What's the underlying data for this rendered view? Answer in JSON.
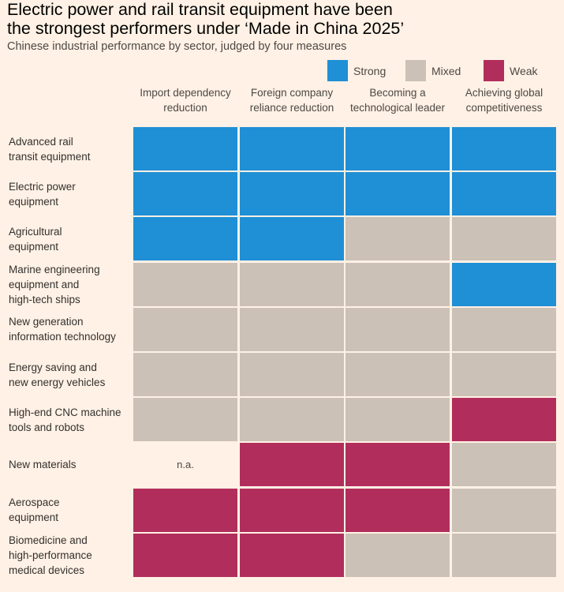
{
  "title_lines": [
    "Electric power and rail transit equipment have been",
    "the strongest performers under ‘Made in China 2025’"
  ],
  "subtitle": "Chinese industrial performance by sector, judged by four measures",
  "legend": [
    {
      "key": "strong",
      "label": "Strong",
      "color": "#1f8fd6"
    },
    {
      "key": "mixed",
      "label": "Mixed",
      "color": "#ccc1b7"
    },
    {
      "key": "weak",
      "label": "Weak",
      "color": "#b12e5c"
    }
  ],
  "chart_data": {
    "type": "table",
    "title": "Electric power and rail transit equipment have been the strongest performers under ‘Made in China 2025’",
    "subtitle": "Chinese industrial performance by sector, judged by four measures",
    "columns": [
      {
        "lines": [
          "Import dependency",
          "reduction"
        ]
      },
      {
        "lines": [
          "Foreign company",
          "reliance reduction"
        ]
      },
      {
        "lines": [
          "Becoming a",
          "technological leader"
        ]
      },
      {
        "lines": [
          "Achieving global",
          "competitiveness"
        ]
      }
    ],
    "rows": [
      {
        "lines": [
          "Advanced rail",
          "transit equipment"
        ],
        "ratings": [
          "strong",
          "strong",
          "strong",
          "strong"
        ]
      },
      {
        "lines": [
          "Electric power",
          "equipment"
        ],
        "ratings": [
          "strong",
          "strong",
          "strong",
          "strong"
        ]
      },
      {
        "lines": [
          "Agricultural",
          "equipment"
        ],
        "ratings": [
          "strong",
          "strong",
          "mixed",
          "mixed"
        ]
      },
      {
        "lines": [
          "Marine engineering",
          "equipment and",
          "high-tech ships"
        ],
        "ratings": [
          "mixed",
          "mixed",
          "mixed",
          "strong"
        ]
      },
      {
        "lines": [
          "New generation",
          "information technology"
        ],
        "ratings": [
          "mixed",
          "mixed",
          "mixed",
          "mixed"
        ]
      },
      {
        "lines": [
          "Energy saving and",
          "new energy vehicles"
        ],
        "ratings": [
          "mixed",
          "mixed",
          "mixed",
          "mixed"
        ]
      },
      {
        "lines": [
          "High-end CNC machine",
          "tools and robots"
        ],
        "ratings": [
          "mixed",
          "mixed",
          "mixed",
          "weak"
        ]
      },
      {
        "lines": [
          "New materials"
        ],
        "ratings": [
          "n.a.",
          "weak",
          "weak",
          "mixed"
        ]
      },
      {
        "lines": [
          "Aerospace",
          "equipment"
        ],
        "ratings": [
          "weak",
          "weak",
          "weak",
          "mixed"
        ]
      },
      {
        "lines": [
          "Biomedicine and",
          "high-performance",
          "medical devices"
        ],
        "ratings": [
          "weak",
          "weak",
          "mixed",
          "mixed"
        ]
      }
    ]
  }
}
